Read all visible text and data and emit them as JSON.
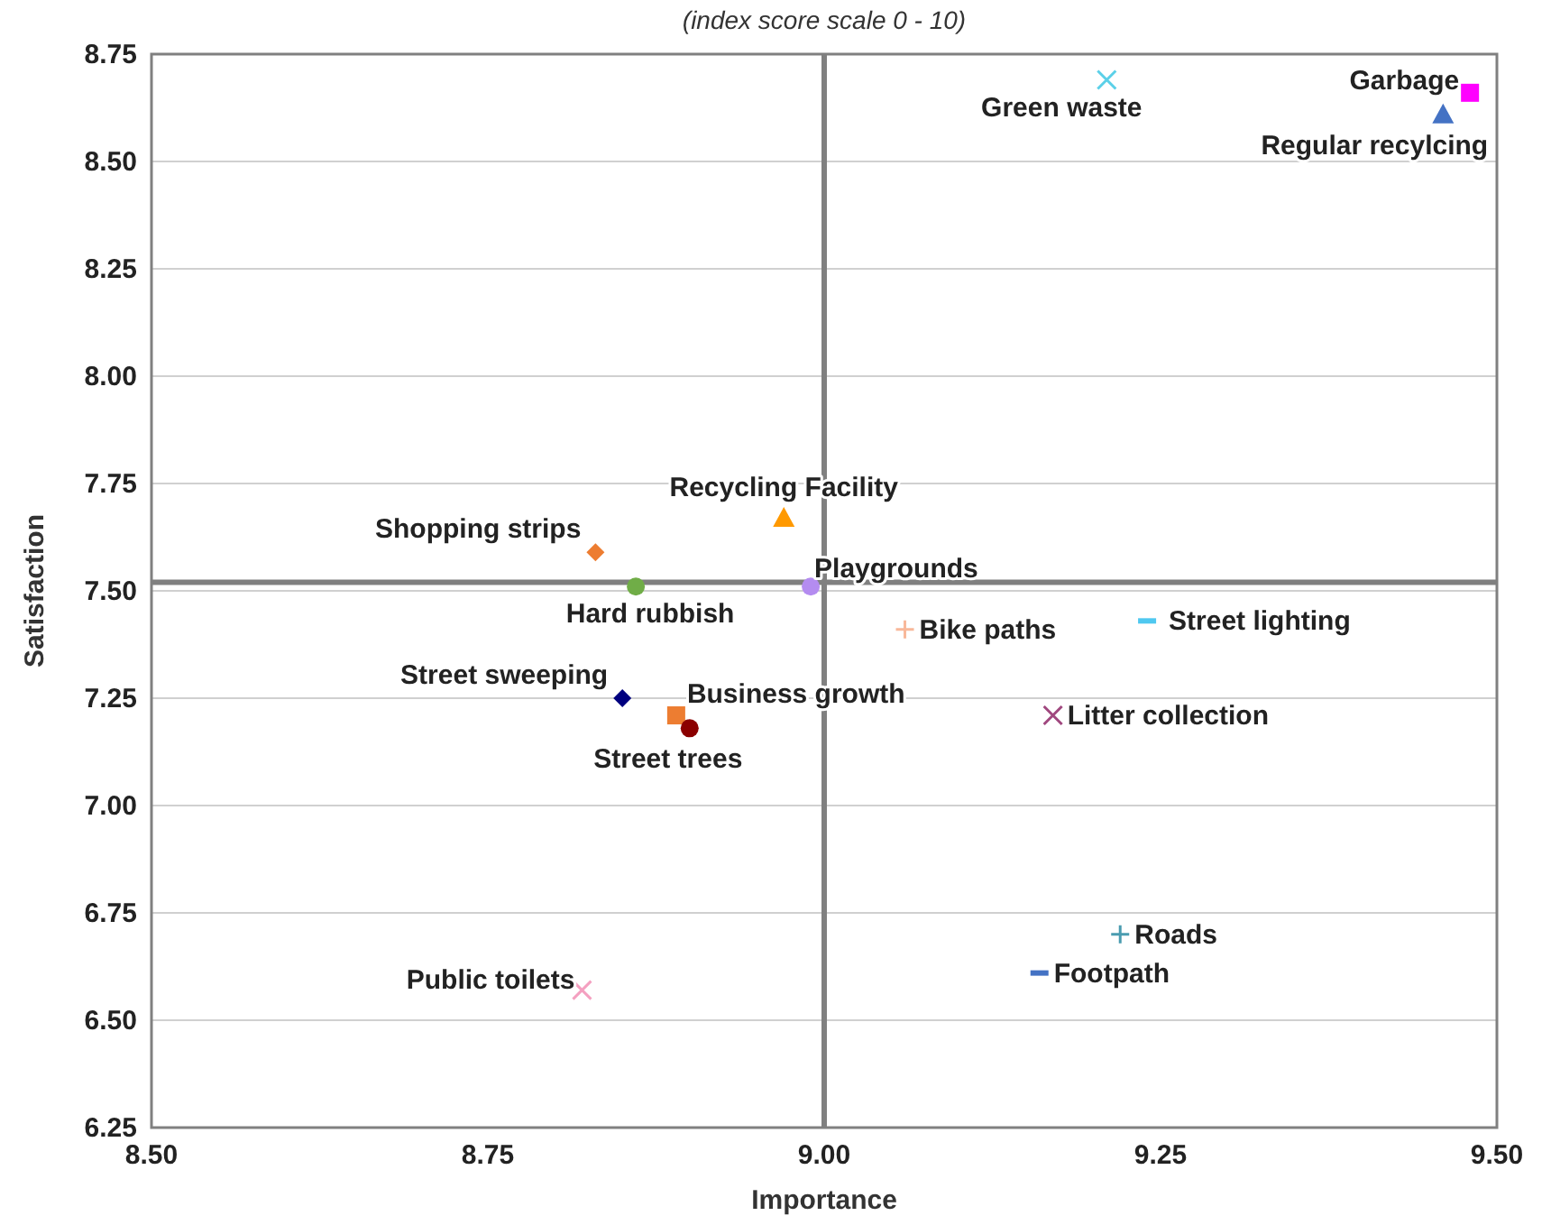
{
  "chart_data": {
    "type": "scatter",
    "subtitle": "(index score scale 0 - 10)",
    "xlabel": "Importance",
    "ylabel": "Satisfaction",
    "xlim": [
      8.5,
      9.5
    ],
    "xticks": [
      {
        "value": 8.5,
        "label": "8.50"
      },
      {
        "value": 8.75,
        "label": "8.75"
      },
      {
        "value": 9,
        "label": "9.00"
      },
      {
        "value": 9.25,
        "label": "9.25"
      },
      {
        "value": 9.5,
        "label": "9.50"
      }
    ],
    "ylim": [
      6.25,
      8.75
    ],
    "yticks": [
      {
        "value": 6.25,
        "label": "6.25"
      },
      {
        "value": 6.5,
        "label": "6.50"
      },
      {
        "value": 6.75,
        "label": "6.75"
      },
      {
        "value": 7,
        "label": "7.00"
      },
      {
        "value": 7.25,
        "label": "7.25"
      },
      {
        "value": 7.5,
        "label": "7.50"
      },
      {
        "value": 7.75,
        "label": "7.75"
      },
      {
        "value": 8,
        "label": "8.00"
      },
      {
        "value": 8.25,
        "label": "8.25"
      },
      {
        "value": 8.5,
        "label": "8.50"
      },
      {
        "value": 8.75,
        "label": "8.75"
      }
    ],
    "grid": "y",
    "ref_lines": [
      {
        "axis": "x",
        "value": 9.0,
        "color": "#808080"
      },
      {
        "axis": "y",
        "value": 7.52,
        "color": "#808080"
      }
    ],
    "series": [
      {
        "name": "Green waste",
        "color": "#5bd0e8",
        "marker": "cross",
        "x": [
          9.21
        ],
        "values": [
          8.69
        ]
      },
      {
        "name": "Garbage",
        "color": "#ff00ff",
        "marker": "square",
        "x": [
          9.48
        ],
        "values": [
          8.66
        ]
      },
      {
        "name": "Regular recylcing",
        "color": "#4472c4",
        "marker": "triangle",
        "x": [
          9.46
        ],
        "values": [
          8.61
        ]
      },
      {
        "name": "Recycling Facility",
        "color": "#ff9900",
        "marker": "triangle",
        "x": [
          8.97
        ],
        "values": [
          7.67
        ]
      },
      {
        "name": "Shopping strips",
        "color": "#ed7d31",
        "marker": "diamond",
        "x": [
          8.83
        ],
        "values": [
          7.59
        ]
      },
      {
        "name": "Hard rubbish",
        "color": "#70ad47",
        "marker": "circle",
        "x": [
          8.86
        ],
        "values": [
          7.51
        ]
      },
      {
        "name": "Playgrounds",
        "color": "#b48cf0",
        "marker": "circle",
        "x": [
          8.99
        ],
        "values": [
          7.51
        ]
      },
      {
        "name": "Bike paths",
        "color": "#f8b89a",
        "marker": "plus",
        "x": [
          9.06
        ],
        "values": [
          7.41
        ]
      },
      {
        "name": "Street lighting",
        "color": "#4fc8f0",
        "x": [
          9.24
        ],
        "values": [
          7.43
        ]
      },
      {
        "name": "Street sweeping",
        "color": "#00007f",
        "marker": "diamond",
        "x": [
          8.85
        ],
        "values": [
          7.25
        ]
      },
      {
        "name": "Business growth",
        "color": "#ed7d31",
        "marker": "square",
        "x": [
          8.89
        ],
        "values": [
          7.21
        ]
      },
      {
        "name": "Street trees",
        "color": "#8b0000",
        "marker": "circle",
        "x": [
          8.9
        ],
        "values": [
          7.18
        ]
      },
      {
        "name": "Litter collection",
        "color": "#a0487f",
        "marker": "cross",
        "x": [
          9.17
        ],
        "values": [
          7.21
        ]
      },
      {
        "name": "Roads",
        "color": "#4a9cb0",
        "marker": "plus",
        "x": [
          9.22
        ],
        "values": [
          6.7
        ]
      },
      {
        "name": "Footpath",
        "color": "#4472c4",
        "x": [
          9.16
        ],
        "values": [
          6.61
        ]
      },
      {
        "name": "Public toilets",
        "color": "#f4a0c0",
        "marker": "cross",
        "x": [
          8.82
        ],
        "values": [
          6.57
        ]
      }
    ]
  }
}
